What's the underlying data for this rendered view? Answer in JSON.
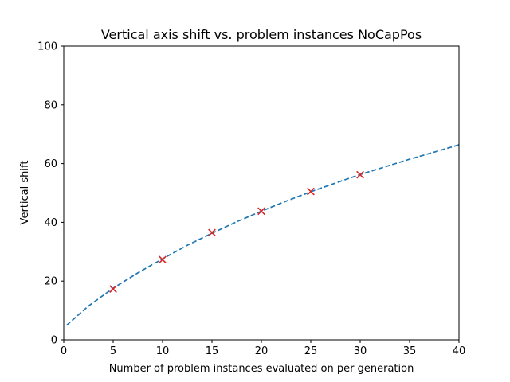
{
  "chart_data": {
    "type": "scatter",
    "title": "Vertical axis shift vs. problem instances NoCapPos",
    "xlabel": "Number of problem instances evaluated on per generation",
    "ylabel": "Vertical shift",
    "xlim": [
      0,
      40
    ],
    "ylim": [
      0,
      100
    ],
    "xticks": [
      0,
      5,
      10,
      15,
      20,
      25,
      30,
      35,
      40
    ],
    "yticks": [
      0,
      20,
      40,
      60,
      80,
      100
    ],
    "grid": false,
    "series": [
      {
        "kind": "scatter",
        "marker": "x",
        "color": "#d62728",
        "x": [
          5,
          10,
          15,
          20,
          25,
          30
        ],
        "y": [
          17.3,
          27.3,
          36.5,
          43.8,
          50.5,
          56.2
        ]
      },
      {
        "kind": "line",
        "style": "dashed",
        "color": "#1f77b4",
        "x": [
          0.3,
          2.5,
          5,
          7.5,
          10,
          12.5,
          15,
          17.5,
          20,
          22.5,
          25,
          27.5,
          30,
          32.5,
          35,
          37.5,
          40
        ],
        "y": [
          5.0,
          11.5,
          17.6,
          22.8,
          27.6,
          32.2,
          36.3,
          40.2,
          43.8,
          47.2,
          50.4,
          53.4,
          56.3,
          58.9,
          61.5,
          63.9,
          66.4
        ]
      }
    ]
  }
}
